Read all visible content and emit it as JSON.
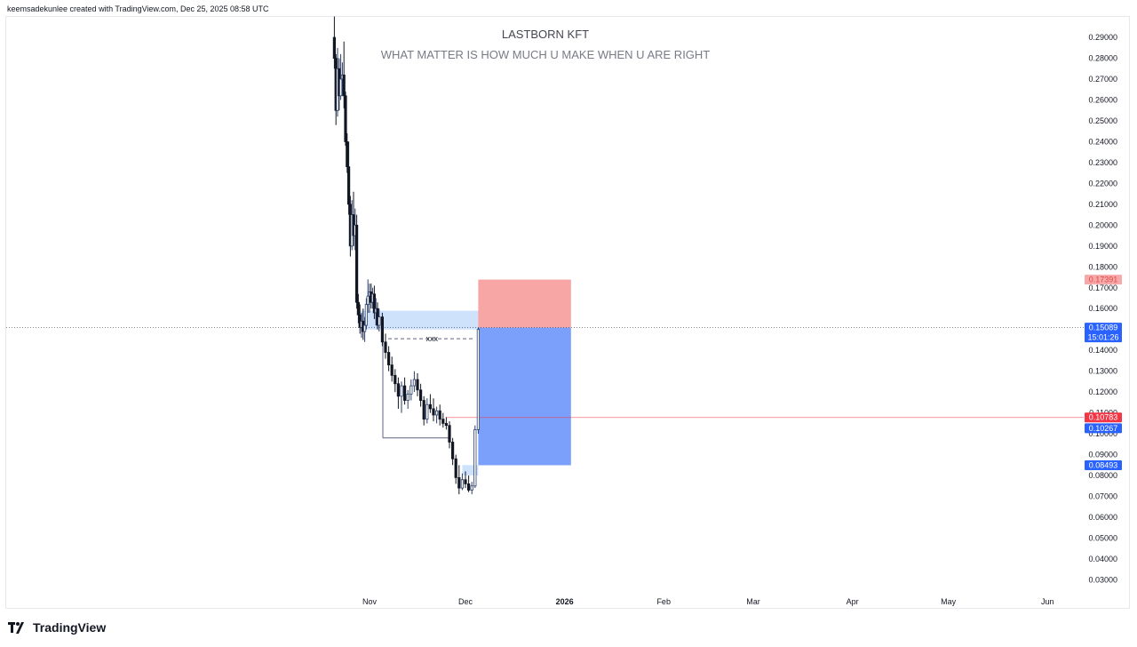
{
  "header": {
    "text": "keemsadekunlee created with TradingView.com, Dec 25, 2025 08:58 UTC"
  },
  "brand": {
    "name": "TradingView"
  },
  "chart_data": {
    "type": "candlestick",
    "title": "LASTBORN KFT",
    "subtitle": "WHAT MATTER IS HOW MUCH U MAKE WHEN U ARE RIGHT",
    "ylim": [
      0.02464,
      0.29983
    ],
    "y_ticks": [
      0.29,
      0.28,
      0.27,
      0.26,
      0.25,
      0.24,
      0.23,
      0.22,
      0.21,
      0.2,
      0.19,
      0.18,
      0.17,
      0.16,
      0.15,
      0.14,
      0.13,
      0.12,
      0.11,
      0.1,
      0.09,
      0.08,
      0.07,
      0.06,
      0.05,
      0.04,
      0.03
    ],
    "y_tick_labels": [
      "0.29000",
      "0.28000",
      "0.27000",
      "0.26000",
      "0.25000",
      "0.24000",
      "0.23000",
      "0.22000",
      "0.21000",
      "0.20000",
      "0.19000",
      "0.18000",
      "0.17000",
      "0.16000",
      "0.15000",
      "0.14000",
      "0.13000",
      "0.12000",
      "0.11000",
      "0.10000",
      "0.09000",
      "0.08000",
      "0.07000",
      "0.06000",
      "0.05000",
      "0.04000",
      "0.03000"
    ],
    "x_ticks": [
      {
        "label": "Nov",
        "day": 0,
        "bold": false
      },
      {
        "label": "Dec",
        "day": 30,
        "bold": false
      },
      {
        "label": "2026",
        "day": 61,
        "bold": true
      },
      {
        "label": "Feb",
        "day": 92,
        "bold": false
      },
      {
        "label": "Mar",
        "day": 120,
        "bold": false
      },
      {
        "label": "Apr",
        "day": 151,
        "bold": false
      },
      {
        "label": "May",
        "day": 181,
        "bold": false
      },
      {
        "label": "Jun",
        "day": 212,
        "bold": false
      }
    ],
    "colors": {
      "up": "#2a3f6e",
      "down": "#131722",
      "accent": "#2962ff",
      "red": "#f23645"
    },
    "candles": [
      {
        "d": -11,
        "o": 0.29,
        "h": 0.3,
        "l": 0.275,
        "c": 0.28
      },
      {
        "d": -10.5,
        "o": 0.28,
        "h": 0.282,
        "l": 0.248,
        "c": 0.255
      },
      {
        "d": -10,
        "o": 0.255,
        "h": 0.285,
        "l": 0.252,
        "c": 0.275
      },
      {
        "d": -9.5,
        "o": 0.275,
        "h": 0.28,
        "l": 0.255,
        "c": 0.262
      },
      {
        "d": -9,
        "o": 0.262,
        "h": 0.282,
        "l": 0.26,
        "c": 0.27
      },
      {
        "d": -8.5,
        "o": 0.27,
        "h": 0.278,
        "l": 0.262,
        "c": 0.272
      },
      {
        "d": -8,
        "o": 0.272,
        "h": 0.288,
        "l": 0.256,
        "c": 0.262
      },
      {
        "d": -7.5,
        "o": 0.262,
        "h": 0.264,
        "l": 0.238,
        "c": 0.24
      },
      {
        "d": -7,
        "o": 0.24,
        "h": 0.244,
        "l": 0.225,
        "c": 0.228
      },
      {
        "d": -6.5,
        "o": 0.228,
        "h": 0.24,
        "l": 0.205,
        "c": 0.21
      },
      {
        "d": -6,
        "o": 0.21,
        "h": 0.214,
        "l": 0.185,
        "c": 0.19
      },
      {
        "d": -5.5,
        "o": 0.19,
        "h": 0.212,
        "l": 0.188,
        "c": 0.205
      },
      {
        "d": -5,
        "o": 0.205,
        "h": 0.216,
        "l": 0.19,
        "c": 0.195
      },
      {
        "d": -4.5,
        "o": 0.195,
        "h": 0.208,
        "l": 0.188,
        "c": 0.2
      },
      {
        "d": -4,
        "o": 0.2,
        "h": 0.205,
        "l": 0.16,
        "c": 0.163
      },
      {
        "d": -3.5,
        "o": 0.163,
        "h": 0.167,
        "l": 0.153,
        "c": 0.157
      },
      {
        "d": -3,
        "o": 0.157,
        "h": 0.162,
        "l": 0.148,
        "c": 0.151
      },
      {
        "d": -2.5,
        "o": 0.151,
        "h": 0.158,
        "l": 0.146,
        "c": 0.154
      },
      {
        "d": -2,
        "o": 0.154,
        "h": 0.16,
        "l": 0.145,
        "c": 0.149
      },
      {
        "d": -1.5,
        "o": 0.149,
        "h": 0.156,
        "l": 0.144,
        "c": 0.152
      },
      {
        "d": -1,
        "o": 0.152,
        "h": 0.165,
        "l": 0.15,
        "c": 0.162
      },
      {
        "d": -0.5,
        "o": 0.162,
        "h": 0.174,
        "l": 0.158,
        "c": 0.166
      },
      {
        "d": 0,
        "o": 0.166,
        "h": 0.172,
        "l": 0.158,
        "c": 0.168
      },
      {
        "d": 0.5,
        "o": 0.168,
        "h": 0.172,
        "l": 0.16,
        "c": 0.163
      },
      {
        "d": 1,
        "o": 0.163,
        "h": 0.17,
        "l": 0.16,
        "c": 0.167
      },
      {
        "d": 1.5,
        "o": 0.167,
        "h": 0.171,
        "l": 0.155,
        "c": 0.158
      },
      {
        "d": 2,
        "o": 0.158,
        "h": 0.165,
        "l": 0.152,
        "c": 0.16
      },
      {
        "d": 2.5,
        "o": 0.16,
        "h": 0.163,
        "l": 0.15,
        "c": 0.152
      },
      {
        "d": 3,
        "o": 0.152,
        "h": 0.16,
        "l": 0.149,
        "c": 0.156
      },
      {
        "d": 4,
        "o": 0.156,
        "h": 0.158,
        "l": 0.142,
        "c": 0.144
      },
      {
        "d": 5,
        "o": 0.144,
        "h": 0.148,
        "l": 0.136,
        "c": 0.139
      },
      {
        "d": 6,
        "o": 0.139,
        "h": 0.142,
        "l": 0.13,
        "c": 0.133
      },
      {
        "d": 7,
        "o": 0.133,
        "h": 0.137,
        "l": 0.125,
        "c": 0.128
      },
      {
        "d": 8,
        "o": 0.128,
        "h": 0.131,
        "l": 0.12,
        "c": 0.124
      },
      {
        "d": 9,
        "o": 0.124,
        "h": 0.127,
        "l": 0.112,
        "c": 0.118
      },
      {
        "d": 10,
        "o": 0.118,
        "h": 0.125,
        "l": 0.11,
        "c": 0.123
      },
      {
        "d": 11,
        "o": 0.123,
        "h": 0.127,
        "l": 0.114,
        "c": 0.116
      },
      {
        "d": 12,
        "o": 0.116,
        "h": 0.121,
        "l": 0.112,
        "c": 0.119
      },
      {
        "d": 13,
        "o": 0.119,
        "h": 0.126,
        "l": 0.116,
        "c": 0.123
      },
      {
        "d": 14,
        "o": 0.123,
        "h": 0.13,
        "l": 0.12,
        "c": 0.126
      },
      {
        "d": 15,
        "o": 0.126,
        "h": 0.129,
        "l": 0.118,
        "c": 0.121
      },
      {
        "d": 16,
        "o": 0.121,
        "h": 0.124,
        "l": 0.113,
        "c": 0.116
      },
      {
        "d": 17,
        "o": 0.116,
        "h": 0.118,
        "l": 0.104,
        "c": 0.107
      },
      {
        "d": 18,
        "o": 0.107,
        "h": 0.117,
        "l": 0.105,
        "c": 0.114
      },
      {
        "d": 19,
        "o": 0.114,
        "h": 0.119,
        "l": 0.11,
        "c": 0.112
      },
      {
        "d": 20,
        "o": 0.112,
        "h": 0.117,
        "l": 0.106,
        "c": 0.109
      },
      {
        "d": 21,
        "o": 0.109,
        "h": 0.113,
        "l": 0.105,
        "c": 0.111
      },
      {
        "d": 22,
        "o": 0.111,
        "h": 0.114,
        "l": 0.104,
        "c": 0.107
      },
      {
        "d": 23,
        "o": 0.107,
        "h": 0.11,
        "l": 0.103,
        "c": 0.105
      },
      {
        "d": 24,
        "o": 0.105,
        "h": 0.108,
        "l": 0.102,
        "c": 0.104
      },
      {
        "d": 25,
        "o": 0.104,
        "h": 0.106,
        "l": 0.093,
        "c": 0.096
      },
      {
        "d": 26,
        "o": 0.096,
        "h": 0.098,
        "l": 0.085,
        "c": 0.088
      },
      {
        "d": 27,
        "o": 0.088,
        "h": 0.09,
        "l": 0.076,
        "c": 0.079
      },
      {
        "d": 28,
        "o": 0.079,
        "h": 0.085,
        "l": 0.071,
        "c": 0.074
      },
      {
        "d": 29,
        "o": 0.074,
        "h": 0.081,
        "l": 0.073,
        "c": 0.078
      },
      {
        "d": 30,
        "o": 0.078,
        "h": 0.082,
        "l": 0.074,
        "c": 0.076
      },
      {
        "d": 31,
        "o": 0.076,
        "h": 0.08,
        "l": 0.072,
        "c": 0.073
      },
      {
        "d": 32,
        "o": 0.073,
        "h": 0.077,
        "l": 0.071,
        "c": 0.075
      },
      {
        "d": 33,
        "o": 0.075,
        "h": 0.104,
        "l": 0.074,
        "c": 0.102
      },
      {
        "d": 34,
        "o": 0.102,
        "h": 0.151,
        "l": 0.1,
        "c": 0.15
      }
    ],
    "zones": {
      "supply_zone": {
        "d0": -3,
        "d1": 35,
        "top": 0.159,
        "bottom": 0.15
      },
      "demand_zone": {
        "d0": 29,
        "d1": 34,
        "top": 0.085,
        "bottom": 0.08
      },
      "position_profit": {
        "d0": 34,
        "d1": 63,
        "top": 0.17391,
        "bottom": 0.15089
      },
      "position_loss": {
        "d0": 34,
        "d1": 63,
        "top": 0.15089,
        "bottom": 0.08493
      },
      "range_box": {
        "d0": 5,
        "d1": 25,
        "top": 0.146,
        "bottom": 0.098,
        "label": "xxx"
      }
    },
    "lines": {
      "current_price": 0.15089,
      "red_line": 0.10783
    },
    "price_labels": [
      {
        "value": 0.17391,
        "text": "0.17391",
        "color": "#f7a9a9",
        "text_color": "#e04848"
      },
      {
        "value": 0.15089,
        "text": "0.15089",
        "subtext": "15:01:26",
        "color": "#2962ff",
        "text_color": "#ffffff"
      },
      {
        "value": 0.10783,
        "text": "0.10783",
        "color": "#f23645",
        "text_color": "#ffffff"
      },
      {
        "value": 0.10267,
        "text": "0.10267",
        "color": "#2962ff",
        "text_color": "#ffffff"
      },
      {
        "value": 0.08493,
        "text": "0.08493",
        "color": "#2962ff",
        "text_color": "#ffffff"
      }
    ]
  }
}
